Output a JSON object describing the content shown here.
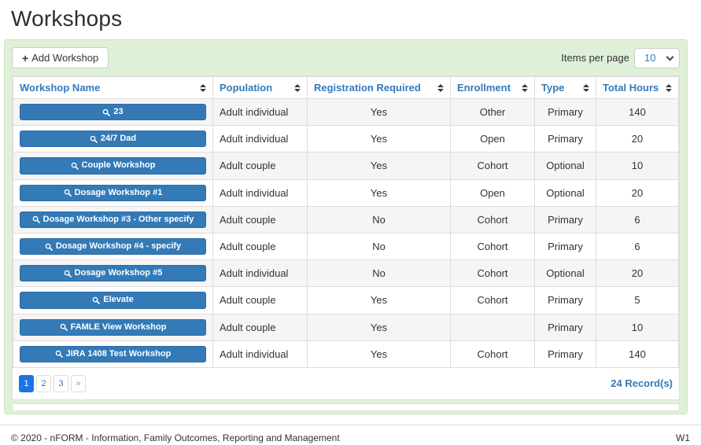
{
  "page": {
    "title": "Workshops",
    "footer": {
      "copyright": "© 2020 - nFORM - Information, Family Outcomes, Reporting and Management",
      "version": "W1"
    }
  },
  "toolbar": {
    "add_icon": "+",
    "add_button_label": "Add Workshop",
    "items_per_page_label": "Items per page",
    "items_per_page_value": "10"
  },
  "table": {
    "columns": [
      "Workshop Name",
      "Population",
      "Registration Required",
      "Enrollment",
      "Type",
      "Total Hours"
    ],
    "rows": [
      {
        "name": "23",
        "population": "Adult individual",
        "registration_required": "Yes",
        "enrollment": "Other",
        "type": "Primary",
        "total_hours": "140"
      },
      {
        "name": "24/7 Dad",
        "population": "Adult individual",
        "registration_required": "Yes",
        "enrollment": "Open",
        "type": "Primary",
        "total_hours": "20"
      },
      {
        "name": "Couple Workshop",
        "population": "Adult couple",
        "registration_required": "Yes",
        "enrollment": "Cohort",
        "type": "Optional",
        "total_hours": "10"
      },
      {
        "name": "Dosage Workshop #1",
        "population": "Adult individual",
        "registration_required": "Yes",
        "enrollment": "Open",
        "type": "Optional",
        "total_hours": "20"
      },
      {
        "name": "Dosage Workshop #3 - Other specify",
        "population": "Adult couple",
        "registration_required": "No",
        "enrollment": "Cohort",
        "type": "Primary",
        "total_hours": "6"
      },
      {
        "name": "Dosage Workshop #4 - specify",
        "population": "Adult couple",
        "registration_required": "No",
        "enrollment": "Cohort",
        "type": "Primary",
        "total_hours": "6"
      },
      {
        "name": "Dosage Workshop #5",
        "population": "Adult individual",
        "registration_required": "No",
        "enrollment": "Cohort",
        "type": "Optional",
        "total_hours": "20"
      },
      {
        "name": "Elevate",
        "population": "Adult couple",
        "registration_required": "Yes",
        "enrollment": "Cohort",
        "type": "Primary",
        "total_hours": "5"
      },
      {
        "name": "FAMLE View Workshop",
        "population": "Adult couple",
        "registration_required": "Yes",
        "enrollment": "",
        "type": "Primary",
        "total_hours": "10"
      },
      {
        "name": "JIRA 1408 Test Workshop",
        "population": "Adult individual",
        "registration_required": "Yes",
        "enrollment": "Cohort",
        "type": "Primary",
        "total_hours": "140"
      }
    ]
  },
  "pagination": {
    "pages": [
      "1",
      "2",
      "3",
      "»"
    ],
    "active_page": "1",
    "record_count": "24 Record(s)"
  },
  "colors": {
    "accent_blue": "#337ab7",
    "active_page_blue": "#1b73e8",
    "panel_green": "#dff0d8",
    "panel_border_green": "#cde3bc",
    "stripe_gray": "#f5f5f5"
  }
}
